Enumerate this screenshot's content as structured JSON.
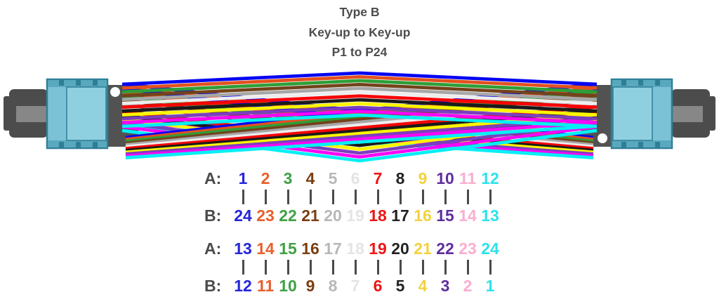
{
  "title": {
    "line1": "Type B",
    "line2": "Key-up to Key-up",
    "line3": "P1 to P24"
  },
  "colors": {
    "text_gray": "#4D4D4D",
    "map_line_gray": "#4A4A4A",
    "connector_aqua": "#7CC2D6",
    "connector_aqua_mid": "#58A8BE",
    "connector_aqua_dark": "#2E7E96",
    "connector_aqua_panel": "#8FD0E0",
    "connector_boot_gray": "#4C4C4C",
    "connector_band_gray": "#878787",
    "ferrule_gray": "#525252",
    "keyhole_white": "#FFFFFF"
  },
  "fibers": {
    "colors": [
      {
        "name": "blue",
        "hex": "#0505F2"
      },
      {
        "name": "orange",
        "hex": "#E2511F"
      },
      {
        "name": "green",
        "hex": "#2E9E38"
      },
      {
        "name": "brown",
        "hex": "#73431B"
      },
      {
        "name": "slate",
        "hex": "#A7A7A7"
      },
      {
        "name": "white",
        "hex": "#EDEDED"
      },
      {
        "name": "red",
        "hex": "#F50505"
      },
      {
        "name": "black",
        "hex": "#1A1A1A"
      },
      {
        "name": "yellow",
        "hex": "#FCF500"
      },
      {
        "name": "violet",
        "hex": "#7B3FBE"
      },
      {
        "name": "rose",
        "hex": "#F707F7"
      },
      {
        "name": "aqua",
        "hex": "#05EFF5"
      }
    ]
  },
  "tables": [
    {
      "name": "pins 1-12",
      "row_a_label": "A:",
      "row_b_label": "B:",
      "pairs": [
        {
          "a": "1",
          "b": "24",
          "color": "#2525DC"
        },
        {
          "a": "2",
          "b": "23",
          "color": "#E7602D"
        },
        {
          "a": "3",
          "b": "22",
          "color": "#3FA044"
        },
        {
          "a": "4",
          "b": "21",
          "color": "#7A3E12"
        },
        {
          "a": "5",
          "b": "20",
          "color": "#B8B8B8"
        },
        {
          "a": "6",
          "b": "19",
          "color": "#E4E4E4"
        },
        {
          "a": "7",
          "b": "18",
          "color": "#EE1515"
        },
        {
          "a": "8",
          "b": "17",
          "color": "#232323"
        },
        {
          "a": "9",
          "b": "16",
          "color": "#F3D13F"
        },
        {
          "a": "10",
          "b": "15",
          "color": "#5F2E9E"
        },
        {
          "a": "11",
          "b": "14",
          "color": "#F8AFD0"
        },
        {
          "a": "12",
          "b": "13",
          "color": "#2CE2EC"
        }
      ]
    },
    {
      "name": "pins 13-24",
      "row_a_label": "A:",
      "row_b_label": "B:",
      "pairs": [
        {
          "a": "13",
          "b": "12",
          "color": "#2525DC"
        },
        {
          "a": "14",
          "b": "11",
          "color": "#E7602D"
        },
        {
          "a": "15",
          "b": "10",
          "color": "#3FA044"
        },
        {
          "a": "16",
          "b": "9",
          "color": "#7A3E12"
        },
        {
          "a": "17",
          "b": "8",
          "color": "#B8B8B8"
        },
        {
          "a": "18",
          "b": "7",
          "color": "#E4E4E4"
        },
        {
          "a": "19",
          "b": "6",
          "color": "#EE1515"
        },
        {
          "a": "20",
          "b": "5",
          "color": "#232323"
        },
        {
          "a": "21",
          "b": "4",
          "color": "#F3D13F"
        },
        {
          "a": "22",
          "b": "3",
          "color": "#5F2E9E"
        },
        {
          "a": "23",
          "b": "2",
          "color": "#F8AFD0"
        },
        {
          "a": "24",
          "b": "1",
          "color": "#2CE2EC"
        }
      ]
    }
  ]
}
